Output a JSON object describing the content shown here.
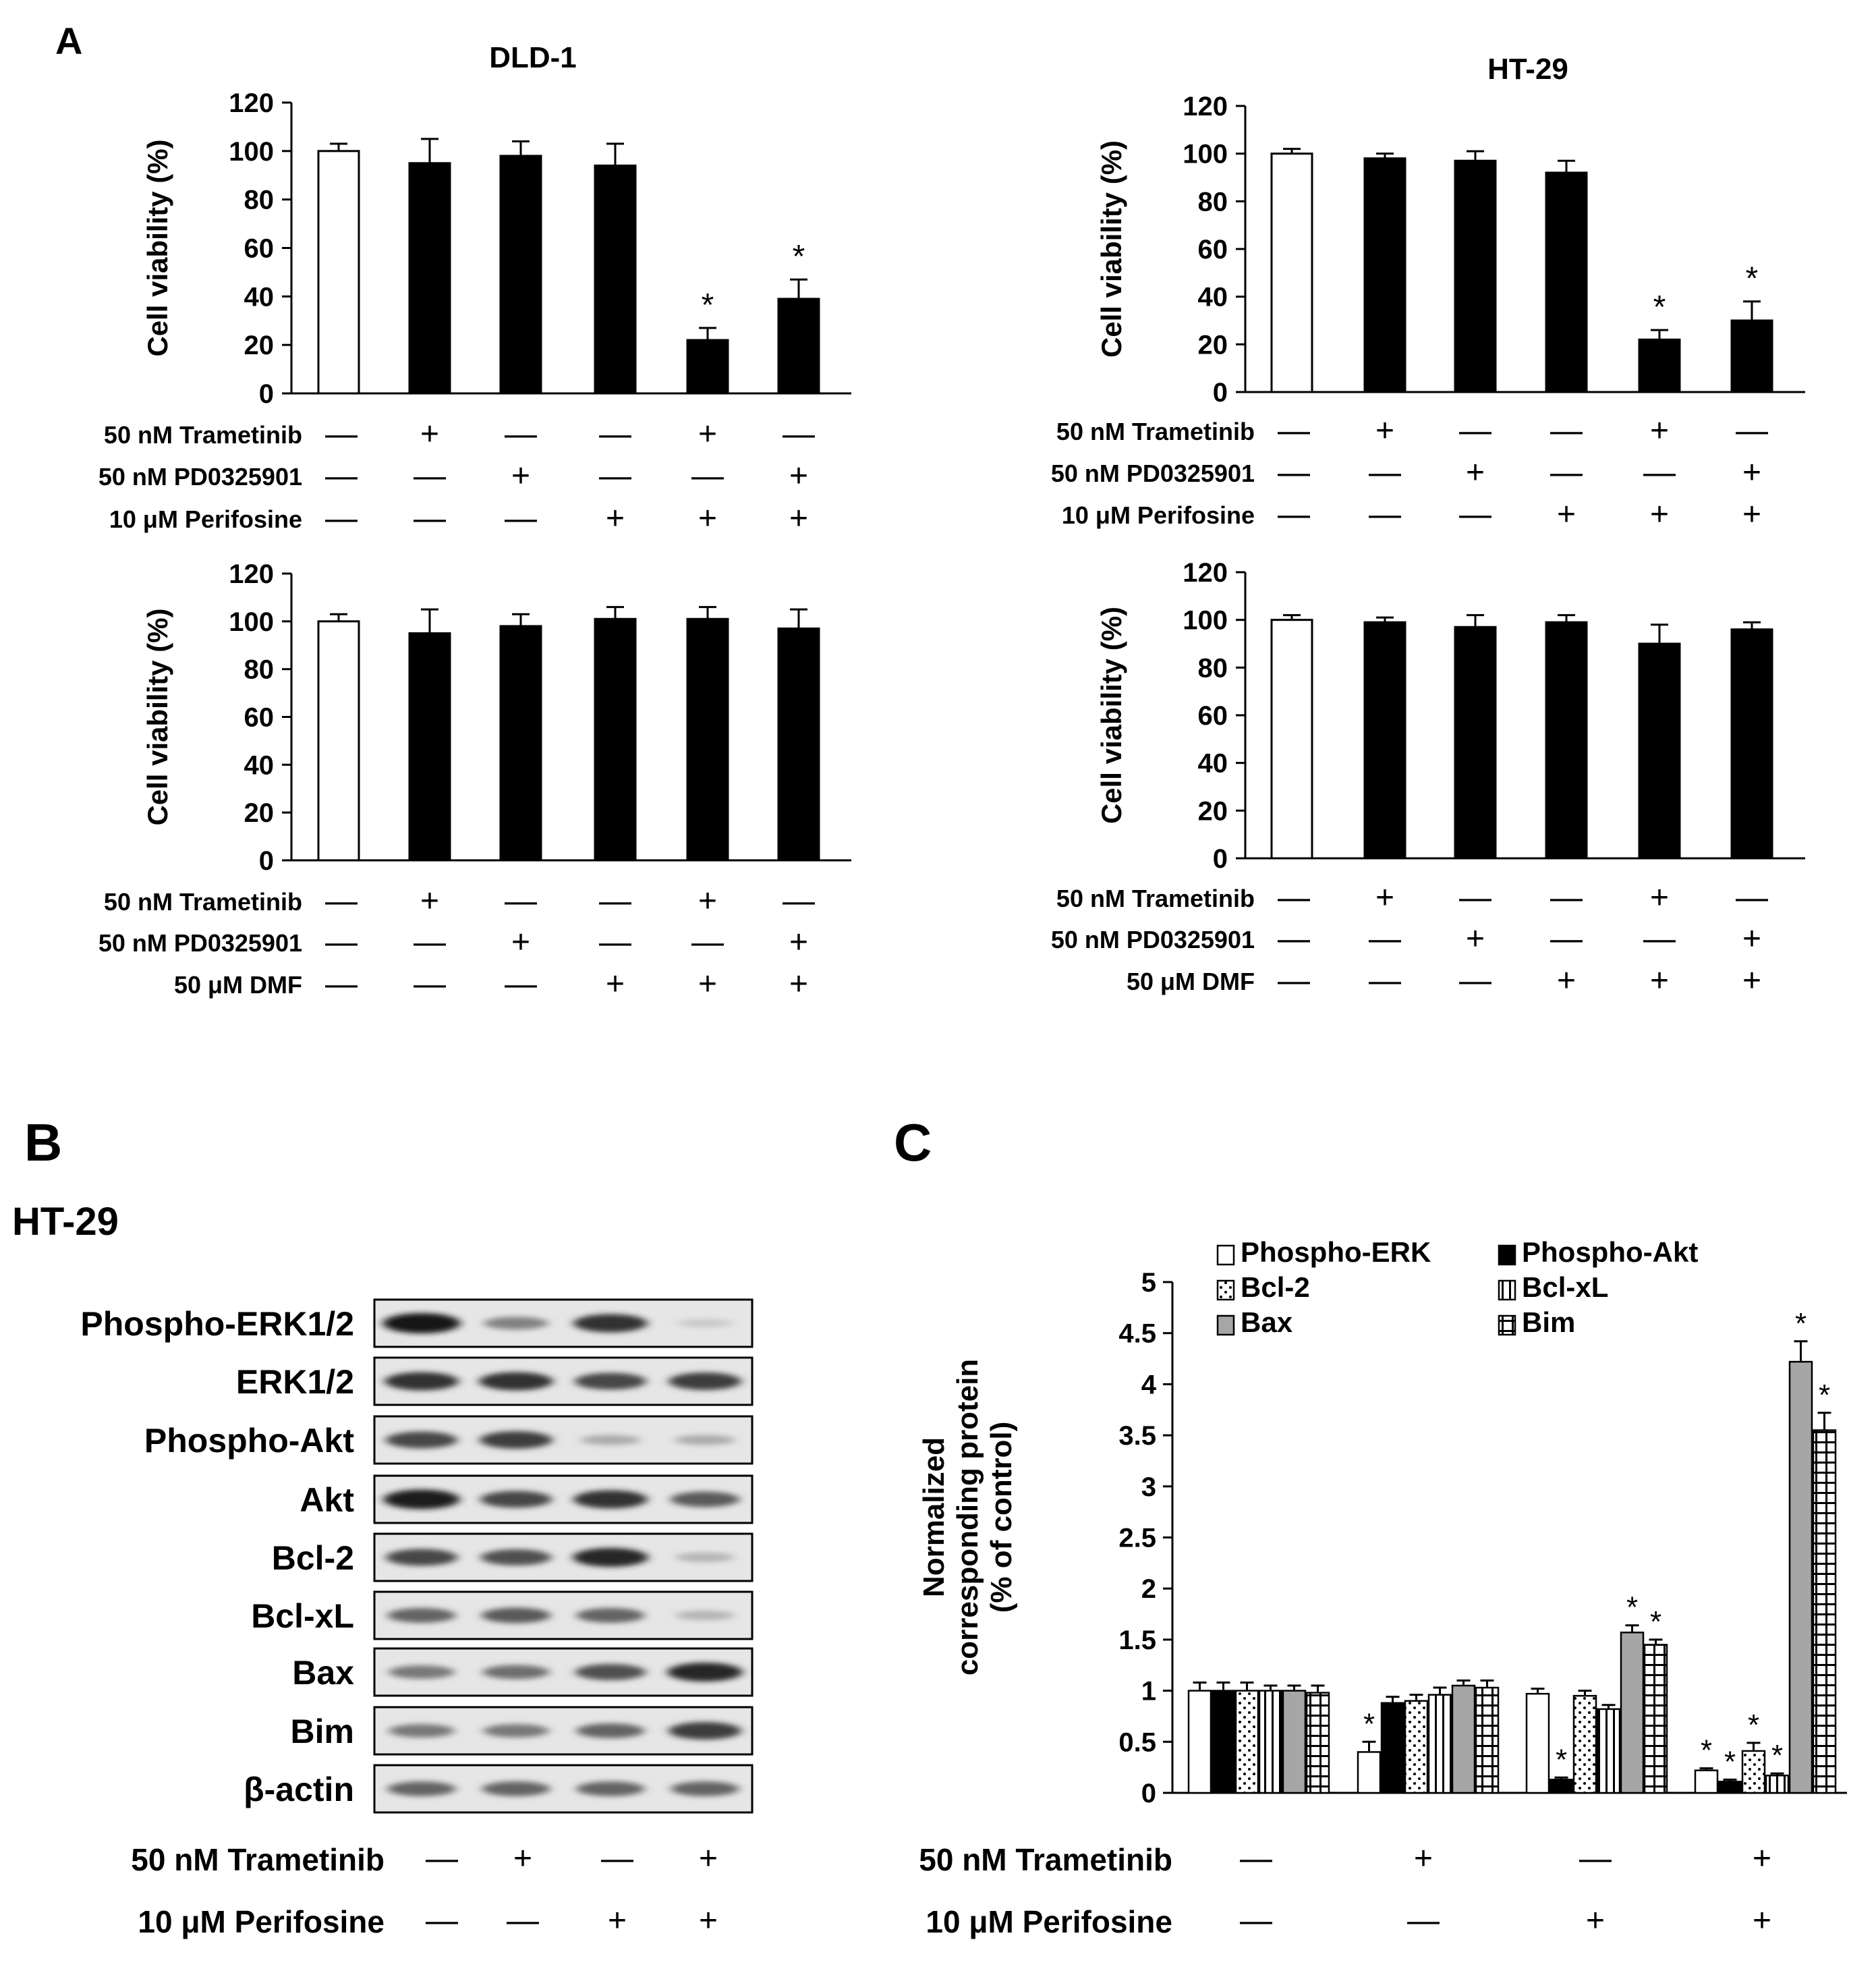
{
  "panels": {
    "A": "A",
    "B": "B",
    "C": "C"
  },
  "treatments": {
    "trametinib": "50 nM Trametinib",
    "pd0325901": "50 nM PD0325901",
    "perifosine": "10 μM Perifosine",
    "dmf": "50 μM DMF",
    "plus": "+",
    "minus": "—"
  },
  "chart_data": [
    {
      "id": "dld1-perifosine",
      "type": "bar",
      "title": "DLD-1",
      "ylabel": "Cell viability (%)",
      "ylim": [
        0,
        120
      ],
      "yticks": [
        0,
        20,
        40,
        60,
        80,
        100,
        120
      ],
      "values": [
        100,
        95,
        98,
        94,
        22,
        39
      ],
      "errors": [
        3,
        10,
        6,
        9,
        5,
        8
      ],
      "bar_fills": [
        "white",
        "black",
        "black",
        "black",
        "black",
        "black"
      ],
      "significance": [
        "",
        "",
        "",
        "",
        "*",
        "*"
      ],
      "conditions": [
        {
          "label": "50 nM Trametinib",
          "signs": [
            "—",
            "+",
            "—",
            "—",
            "+",
            "—"
          ]
        },
        {
          "label": "50 nM PD0325901",
          "signs": [
            "—",
            "—",
            "+",
            "—",
            "—",
            "+"
          ]
        },
        {
          "label": "10 μM Perifosine",
          "signs": [
            "—",
            "—",
            "—",
            "+",
            "+",
            "+"
          ]
        }
      ]
    },
    {
      "id": "ht29-perifosine",
      "type": "bar",
      "title": "HT-29",
      "ylabel": "Cell viability (%)",
      "ylim": [
        0,
        120
      ],
      "yticks": [
        0,
        20,
        40,
        60,
        80,
        100,
        120
      ],
      "values": [
        100,
        98,
        97,
        92,
        22,
        30
      ],
      "errors": [
        2,
        2,
        4,
        5,
        4,
        8
      ],
      "bar_fills": [
        "white",
        "black",
        "black",
        "black",
        "black",
        "black"
      ],
      "significance": [
        "",
        "",
        "",
        "",
        "*",
        "*"
      ],
      "conditions": [
        {
          "label": "50 nM Trametinib",
          "signs": [
            "—",
            "+",
            "—",
            "—",
            "+",
            "—"
          ]
        },
        {
          "label": "50 nM PD0325901",
          "signs": [
            "—",
            "—",
            "+",
            "—",
            "—",
            "+"
          ]
        },
        {
          "label": "10 μM Perifosine",
          "signs": [
            "—",
            "—",
            "—",
            "+",
            "+",
            "+"
          ]
        }
      ]
    },
    {
      "id": "dld1-dmf",
      "type": "bar",
      "title": "",
      "ylabel": "Cell viability (%)",
      "ylim": [
        0,
        120
      ],
      "yticks": [
        0,
        20,
        40,
        60,
        80,
        100,
        120
      ],
      "values": [
        100,
        95,
        98,
        101,
        101,
        97
      ],
      "errors": [
        3,
        10,
        5,
        5,
        5,
        8
      ],
      "bar_fills": [
        "white",
        "black",
        "black",
        "black",
        "black",
        "black"
      ],
      "significance": [
        "",
        "",
        "",
        "",
        "",
        ""
      ],
      "conditions": [
        {
          "label": "50 nM Trametinib",
          "signs": [
            "—",
            "+",
            "—",
            "—",
            "+",
            "—"
          ]
        },
        {
          "label": "50 nM PD0325901",
          "signs": [
            "—",
            "—",
            "+",
            "—",
            "—",
            "+"
          ]
        },
        {
          "label": "50 μM DMF",
          "signs": [
            "—",
            "—",
            "—",
            "+",
            "+",
            "+"
          ]
        }
      ]
    },
    {
      "id": "ht29-dmf",
      "type": "bar",
      "title": "",
      "ylabel": "Cell viability (%)",
      "ylim": [
        0,
        120
      ],
      "yticks": [
        0,
        20,
        40,
        60,
        80,
        100,
        120
      ],
      "values": [
        100,
        99,
        97,
        99,
        90,
        96
      ],
      "errors": [
        2,
        2,
        5,
        3,
        8,
        3
      ],
      "bar_fills": [
        "white",
        "black",
        "black",
        "black",
        "black",
        "black"
      ],
      "significance": [
        "",
        "",
        "",
        "",
        "",
        ""
      ],
      "conditions": [
        {
          "label": "50 nM Trametinib",
          "signs": [
            "—",
            "+",
            "—",
            "—",
            "+",
            "—"
          ]
        },
        {
          "label": "50 nM PD0325901",
          "signs": [
            "—",
            "—",
            "+",
            "—",
            "—",
            "+"
          ]
        },
        {
          "label": "50 μM DMF",
          "signs": [
            "—",
            "—",
            "—",
            "+",
            "+",
            "+"
          ]
        }
      ]
    },
    {
      "id": "normalized-protein",
      "type": "bar",
      "title": "",
      "ylabel": "Normalized corresponding protein (% of control)",
      "ylim": [
        0,
        5
      ],
      "yticks": [
        0,
        0.5,
        1,
        1.5,
        2,
        2.5,
        3,
        3.5,
        4,
        4.5,
        5
      ],
      "legend_position": "top",
      "series": [
        {
          "name": "Phospho-ERK",
          "pattern": "white",
          "values": [
            1.0,
            0.4,
            0.97,
            0.22
          ],
          "errors": [
            0.08,
            0.1,
            0.05,
            0.02
          ],
          "significance": [
            "",
            "*",
            "",
            "*"
          ]
        },
        {
          "name": "Phospho-Akt",
          "pattern": "black",
          "values": [
            1.0,
            0.88,
            0.13,
            0.11
          ],
          "errors": [
            0.08,
            0.06,
            0.02,
            0.02
          ],
          "significance": [
            "",
            "",
            "*",
            "*"
          ]
        },
        {
          "name": "Bcl-2",
          "pattern": "dots",
          "values": [
            1.0,
            0.9,
            0.95,
            0.41
          ],
          "errors": [
            0.08,
            0.06,
            0.05,
            0.08
          ],
          "significance": [
            "",
            "",
            "",
            "*"
          ]
        },
        {
          "name": "Bcl-xL",
          "pattern": "vlines",
          "values": [
            1.0,
            0.96,
            0.82,
            0.17
          ],
          "errors": [
            0.05,
            0.07,
            0.04,
            0.02
          ],
          "significance": [
            "",
            "",
            "",
            "*"
          ]
        },
        {
          "name": "Bax",
          "pattern": "gray",
          "values": [
            1.0,
            1.05,
            1.57,
            4.22
          ],
          "errors": [
            0.05,
            0.05,
            0.07,
            0.2
          ],
          "significance": [
            "",
            "",
            "*",
            "*"
          ]
        },
        {
          "name": "Bim",
          "pattern": "grid",
          "values": [
            0.98,
            1.03,
            1.45,
            3.55
          ],
          "errors": [
            0.07,
            0.07,
            0.05,
            0.17
          ],
          "significance": [
            "",
            "",
            "*",
            "*"
          ]
        }
      ],
      "conditions": [
        {
          "label": "50 nM Trametinib",
          "signs": [
            "—",
            "+",
            "—",
            "+"
          ]
        },
        {
          "label": "10 μM Perifosine",
          "signs": [
            "—",
            "—",
            "+",
            "+"
          ]
        }
      ]
    }
  ],
  "western_blot": {
    "cell_line": "HT-29",
    "bands": [
      {
        "label": "Phospho-ERK1/2",
        "intensity": [
          1.0,
          0.45,
          0.85,
          0.1
        ]
      },
      {
        "label": "ERK1/2",
        "intensity": [
          0.85,
          0.85,
          0.75,
          0.8
        ]
      },
      {
        "label": "Phospho-Akt",
        "intensity": [
          0.75,
          0.8,
          0.25,
          0.25
        ]
      },
      {
        "label": "Akt",
        "intensity": [
          0.95,
          0.75,
          0.85,
          0.65
        ]
      },
      {
        "label": "Bcl-2",
        "intensity": [
          0.75,
          0.7,
          0.9,
          0.2
        ]
      },
      {
        "label": "Bcl-xL",
        "intensity": [
          0.6,
          0.65,
          0.6,
          0.2
        ]
      },
      {
        "label": "Bax",
        "intensity": [
          0.5,
          0.55,
          0.7,
          0.9
        ]
      },
      {
        "label": "Bim",
        "intensity": [
          0.5,
          0.5,
          0.6,
          0.8
        ]
      },
      {
        "label": "β-actin",
        "intensity": [
          0.6,
          0.6,
          0.6,
          0.6
        ]
      }
    ],
    "conditions": [
      {
        "label": "50 nM Trametinib",
        "signs": [
          "—",
          "+",
          "—",
          "+"
        ]
      },
      {
        "label": "10 μM Perifosine",
        "signs": [
          "—",
          "—",
          "+",
          "+"
        ]
      }
    ]
  }
}
